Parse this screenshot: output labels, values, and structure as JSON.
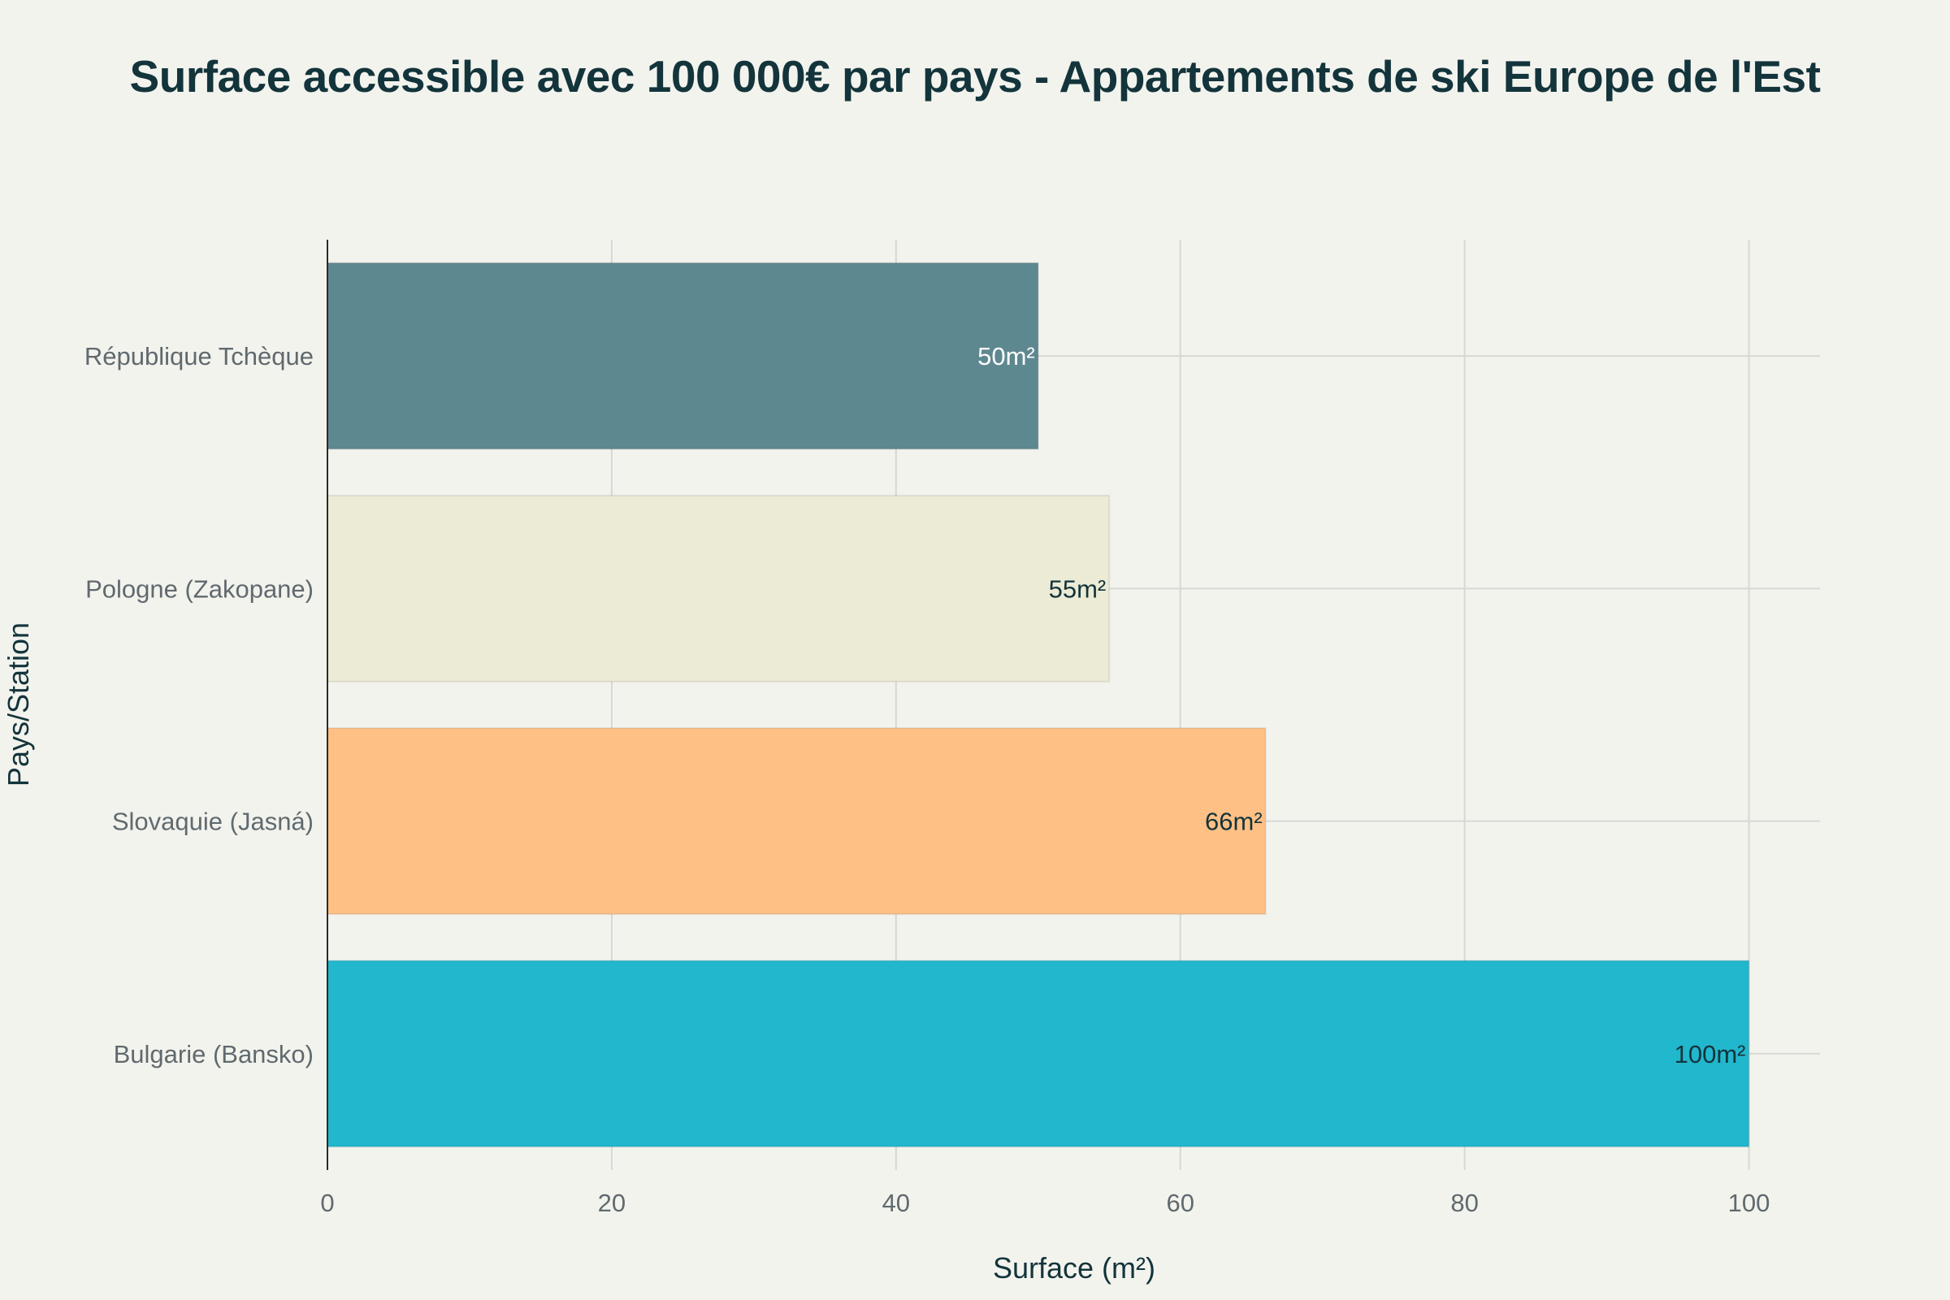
{
  "chart_data": {
    "type": "bar",
    "orientation": "horizontal",
    "title": "Surface accessible avec 100 000€ par pays - Appartements de ski Europe de l'Est",
    "xlabel": "Surface (m²)",
    "ylabel": "Pays/Station",
    "categories": [
      "Bulgarie (Bansko)",
      "Slovaquie (Jasná)",
      "Pologne (Zakopane)",
      "République Tchèque"
    ],
    "values": [
      100,
      66,
      55,
      50
    ],
    "data_labels": [
      "100m²",
      "66m²",
      "55m²",
      "50m²"
    ],
    "colors": [
      "#21b7cd",
      "#ffc085",
      "#ecebd5",
      "#5e8890"
    ],
    "label_colors": [
      "#13343b",
      "#13343b",
      "#13343b",
      "#ffffff"
    ],
    "xlim": [
      0,
      105
    ],
    "xticks": [
      0,
      20,
      40,
      60,
      80,
      100
    ],
    "grid": true,
    "legend": "none"
  }
}
